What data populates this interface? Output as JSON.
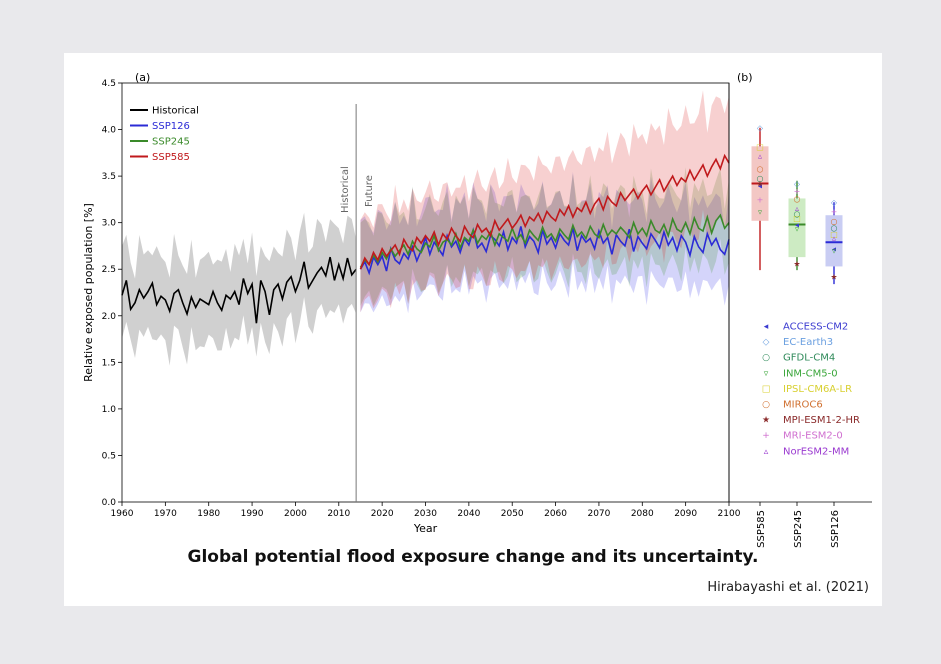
{
  "caption": "Global potential flood exposure change and its uncertainty.",
  "credit": "Hirabayashi et al. (2021)",
  "colors": {
    "historical": "#000000",
    "ssp126": "#2b2bd6",
    "ssp245": "#3a8a2a",
    "ssp585": "#c0191c"
  },
  "chart_data": [
    {
      "panel": "(a)",
      "type": "line",
      "xlabel": "Year",
      "ylabel": "Relative exposed population [%]",
      "xlim": [
        1960,
        2100
      ],
      "ylim": [
        0.0,
        4.5
      ],
      "xticks": [
        1960,
        1970,
        1980,
        1990,
        2000,
        2010,
        2020,
        2030,
        2040,
        2050,
        2060,
        2070,
        2080,
        2090,
        2100
      ],
      "yticks": [
        0.0,
        0.5,
        1.0,
        1.5,
        2.0,
        2.5,
        3.0,
        3.5,
        4.0,
        4.5
      ],
      "divider_year": 2014,
      "divider_labels": [
        "Historical",
        "Future"
      ],
      "legend_position": "top-left",
      "series": [
        {
          "name": "Historical",
          "color": "#000000",
          "x_start": 1960,
          "band": [
            0.45,
            0.45
          ],
          "values": [
            2.22,
            2.38,
            2.07,
            2.14,
            2.28,
            2.19,
            2.26,
            2.35,
            2.12,
            2.21,
            2.17,
            2.05,
            2.24,
            2.28,
            2.14,
            2.02,
            2.2,
            2.09,
            2.18,
            2.15,
            2.12,
            2.26,
            2.14,
            2.06,
            2.22,
            2.18,
            2.26,
            2.12,
            2.4,
            2.24,
            2.34,
            1.92,
            2.38,
            2.26,
            2.01,
            2.28,
            2.34,
            2.18,
            2.36,
            2.42,
            2.26,
            2.38,
            2.58,
            2.3,
            2.38,
            2.46,
            2.52,
            2.43,
            2.63,
            2.38,
            2.55,
            2.4,
            2.62,
            2.44,
            2.5
          ]
        },
        {
          "name": "SSP126",
          "color": "#2b2bd6",
          "x_start": 2015,
          "band": [
            0.45,
            0.45
          ],
          "values": [
            2.5,
            2.58,
            2.46,
            2.63,
            2.55,
            2.64,
            2.48,
            2.72,
            2.6,
            2.56,
            2.67,
            2.61,
            2.74,
            2.59,
            2.7,
            2.84,
            2.66,
            2.79,
            2.72,
            2.65,
            2.86,
            2.74,
            2.8,
            2.68,
            2.83,
            2.76,
            2.92,
            2.73,
            2.78,
            2.69,
            2.86,
            2.82,
            2.75,
            2.9,
            2.71,
            2.84,
            2.78,
            2.96,
            2.74,
            2.85,
            2.8,
            2.68,
            2.92,
            2.77,
            2.84,
            2.73,
            2.88,
            2.81,
            2.76,
            2.94,
            2.7,
            2.86,
            2.79,
            2.83,
            2.72,
            2.91,
            2.78,
            2.84,
            2.66,
            2.87,
            2.8,
            2.75,
            2.93,
            2.69,
            2.85,
            2.78,
            2.72,
            2.88,
            2.81,
            2.73,
            2.9,
            2.76,
            2.84,
            2.7,
            2.86,
            2.79,
            2.65,
            2.85,
            2.74,
            2.68,
            2.88,
            2.76,
            2.83,
            2.71,
            2.66,
            2.82
          ]
        },
        {
          "name": "SSP245",
          "color": "#3a8a2a",
          "x_start": 2015,
          "band": [
            0.4,
            0.4
          ],
          "values": [
            2.52,
            2.6,
            2.55,
            2.65,
            2.58,
            2.68,
            2.61,
            2.72,
            2.64,
            2.7,
            2.76,
            2.66,
            2.8,
            2.72,
            2.68,
            2.78,
            2.74,
            2.86,
            2.7,
            2.79,
            2.82,
            2.76,
            2.88,
            2.73,
            2.84,
            2.8,
            2.92,
            2.78,
            2.86,
            2.82,
            2.9,
            2.76,
            2.88,
            2.84,
            2.8,
            2.94,
            2.82,
            2.87,
            2.78,
            2.92,
            2.86,
            2.81,
            2.95,
            2.84,
            2.88,
            2.8,
            2.93,
            2.87,
            2.82,
            2.97,
            2.85,
            2.9,
            2.83,
            2.96,
            2.88,
            2.84,
            2.98,
            2.86,
            2.92,
            2.88,
            2.95,
            2.9,
            2.84,
            3.0,
            2.88,
            2.94,
            2.86,
            3.02,
            2.92,
            2.89,
            2.98,
            2.86,
            3.04,
            2.93,
            2.9,
            3.0,
            2.88,
            3.05,
            2.94,
            2.91,
            3.06,
            2.89,
            3.02,
            3.08,
            2.94,
            3.0
          ]
        },
        {
          "name": "SSP585",
          "color": "#c0191c",
          "x_start": 2015,
          "band": [
            0.45,
            0.65
          ],
          "values": [
            2.5,
            2.62,
            2.55,
            2.68,
            2.6,
            2.72,
            2.64,
            2.7,
            2.76,
            2.66,
            2.82,
            2.74,
            2.7,
            2.84,
            2.78,
            2.86,
            2.8,
            2.9,
            2.76,
            2.88,
            2.82,
            2.94,
            2.86,
            2.8,
            2.96,
            2.88,
            2.84,
            2.98,
            2.9,
            2.94,
            2.86,
            3.02,
            2.92,
            2.98,
            3.04,
            2.94,
            3.0,
            3.08,
            2.96,
            3.06,
            3.02,
            3.1,
            3.0,
            3.12,
            3.06,
            3.02,
            3.14,
            3.08,
            3.18,
            3.06,
            3.16,
            3.12,
            3.22,
            3.1,
            3.2,
            3.26,
            3.14,
            3.28,
            3.22,
            3.18,
            3.32,
            3.24,
            3.3,
            3.36,
            3.26,
            3.34,
            3.4,
            3.3,
            3.38,
            3.46,
            3.34,
            3.42,
            3.5,
            3.4,
            3.48,
            3.44,
            3.56,
            3.46,
            3.54,
            3.62,
            3.5,
            3.6,
            3.68,
            3.58,
            3.72,
            3.64
          ]
        }
      ]
    },
    {
      "panel": "(b)",
      "type": "box",
      "categories": [
        "SSP585",
        "SSP245",
        "SSP126"
      ],
      "ylim": [
        0.0,
        4.5
      ],
      "boxes": [
        {
          "name": "SSP585",
          "color": "#c0191c",
          "fill": "#f3c7c4",
          "min": 2.49,
          "q1": 3.02,
          "median": 3.42,
          "q3": 3.82,
          "max": 4.02
        },
        {
          "name": "SSP245",
          "color": "#3a8a2a",
          "fill": "#cdebc3",
          "min": 2.49,
          "q1": 2.63,
          "median": 2.98,
          "q3": 3.26,
          "max": 3.45
        },
        {
          "name": "SSP126",
          "color": "#2b2bd6",
          "fill": "#c9cdf3",
          "min": 2.34,
          "q1": 2.53,
          "median": 2.79,
          "q3": 3.08,
          "max": 3.22
        }
      ],
      "models": [
        {
          "name": "ACCESS-CM2",
          "marker": "◂",
          "color": "#3b3bd0",
          "values": [
            3.4,
            2.98,
            2.72
          ]
        },
        {
          "name": "EC-Earth3",
          "marker": "◇",
          "color": "#6a9fe0",
          "values": [
            4.02,
            3.42,
            3.22
          ]
        },
        {
          "name": "GFDL-CM4",
          "marker": "○",
          "color": "#2f8a5a",
          "values": [
            3.48,
            3.1,
            2.95
          ]
        },
        {
          "name": "INM-CM5-0",
          "marker": "▿",
          "color": "#3aa63a",
          "values": [
            3.12,
            2.94,
            2.7
          ]
        },
        {
          "name": "IPSL-CM6A-LR",
          "marker": "□",
          "color": "#d8d030",
          "values": [
            3.82,
            3.05,
            2.88
          ]
        },
        {
          "name": "MIROC6",
          "marker": "○",
          "color": "#d07030",
          "values": [
            3.58,
            3.26,
            3.02
          ]
        },
        {
          "name": "MPI-ESM1-2-HR",
          "marker": "★",
          "color": "#8a2a2a",
          "values": [
            3.42,
            2.56,
            2.42
          ]
        },
        {
          "name": "MRI-ESM2-0",
          "marker": "+",
          "color": "#d070d0",
          "values": [
            3.25,
            3.34,
            3.12
          ]
        },
        {
          "name": "NorESM2-MM",
          "marker": "▵",
          "color": "#9a3ad0",
          "values": [
            3.72,
            3.16,
            2.84
          ]
        }
      ]
    }
  ]
}
